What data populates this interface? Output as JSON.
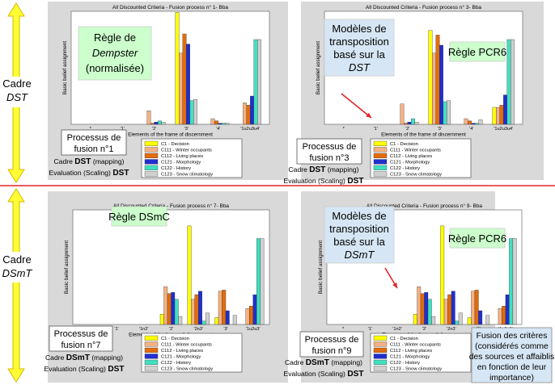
{
  "frames": [
    {
      "text": "Cadre",
      "italic_text": "DST"
    },
    {
      "text": "Cadre",
      "italic_text": "DSmT"
    }
  ],
  "colors": {
    "divider": "#e0262a",
    "arrow": "#ffff33",
    "arrow_stroke": "#d9b800",
    "panel_bg": "#d9d9d9",
    "rule_box": "#ccffcc",
    "model_box": "#d6e6f4",
    "note_box": "#d6e6f4"
  },
  "legend": [
    {
      "label": "C1 - Decision",
      "color": "#ffff00"
    },
    {
      "label": "C111 - Winter occupants",
      "color": "#f4b183"
    },
    {
      "label": "C112 - Living places",
      "color": "#e46c0a"
    },
    {
      "label": "C121 - Morphology",
      "color": "#1f2fcf"
    },
    {
      "label": "C122 - History",
      "color": "#40e0c0"
    },
    {
      "label": "C123 - Snow climatology",
      "color": "#d0d0d0"
    }
  ],
  "chart_data": [
    {
      "type": "bar",
      "title": "All Discounted Criteria - Fusion process n° 1- Bba",
      "xlabel": "Elements of the frame of discernment",
      "ylabel": "Basic belief assignment",
      "ylim": [
        0,
        1
      ],
      "categories": [
        "*",
        "'1'",
        "'2'",
        "'3'",
        "'4'",
        "'1u2u3u4'"
      ],
      "series": [
        {
          "name": "C1 - Decision",
          "values": [
            0,
            0,
            0,
            0.99,
            0,
            0
          ]
        },
        {
          "name": "C111 - Winter occupants",
          "values": [
            0,
            0,
            0.12,
            0.63,
            0.05,
            0.19
          ]
        },
        {
          "name": "C112 - Living places",
          "values": [
            0,
            0,
            0.01,
            0.8,
            0.03,
            0.17
          ]
        },
        {
          "name": "C121 - Morphology",
          "values": [
            0,
            0,
            0.02,
            0.71,
            0.01,
            0.25
          ]
        },
        {
          "name": "C122 - History",
          "values": [
            0,
            0,
            0.03,
            0.21,
            0.01,
            0.75
          ]
        },
        {
          "name": "C123 - Snow climatology",
          "values": [
            0,
            0,
            0.02,
            0.22,
            0.01,
            0.75
          ]
        }
      ],
      "rule": {
        "line1": "Règle de",
        "line2_italic": "Dempster",
        "line3": "(normalisée)"
      },
      "process": {
        "line1": "Processus de",
        "line2": "fusion n°1",
        "cadre_pre": "Cadre ",
        "cadre_bold": "DST",
        "cadre_post": " (mapping)",
        "eval_pre": "Evaluation (Scaling) ",
        "eval_bold": "DST"
      }
    },
    {
      "type": "bar",
      "title": "All Discounted Criteria - Fusion process n° 3- Bba",
      "xlabel": "Elements of the frame of discernment",
      "ylabel": "Basic belief assignment",
      "ylim": [
        0,
        1
      ],
      "categories": [
        "*",
        "'1'",
        "'2'",
        "'3'",
        "'4'",
        "'1u2u3u4'"
      ],
      "series": [
        {
          "name": "C1 - Decision",
          "values": [
            0,
            0,
            0,
            0.83,
            0,
            0.15
          ]
        },
        {
          "name": "C111 - Winter occupants",
          "values": [
            0,
            0,
            0.18,
            0.63,
            0.05,
            0.15
          ]
        },
        {
          "name": "C112 - Living places",
          "values": [
            0,
            0,
            0.01,
            0.79,
            0.03,
            0.17
          ]
        },
        {
          "name": "C121 - Morphology",
          "values": [
            0,
            0,
            0.02,
            0.7,
            0.01,
            0.26
          ]
        },
        {
          "name": "C122 - History",
          "values": [
            0,
            0,
            0.05,
            0.2,
            0.01,
            0.75
          ]
        },
        {
          "name": "C123 - Snow climatology",
          "values": [
            0,
            0,
            0.02,
            0.21,
            0.04,
            0.75
          ]
        }
      ],
      "rule": {
        "line1": "Règle PCR6"
      },
      "model": {
        "line1": "Modèles de",
        "line2": "transposition",
        "line3": "basé sur la",
        "line4_italic": "DST"
      },
      "process": {
        "line1": "Processus de",
        "line2": "fusion n°3",
        "cadre_pre": "Cadre ",
        "cadre_bold": "DST",
        "cadre_post": " (mapping)",
        "eval_pre": "Evaluation (Scaling) ",
        "eval_bold": "DST"
      }
    },
    {
      "type": "bar",
      "title": "All Discounted Criteria - Fusion process n° 7- Bba",
      "xlabel": "Elements of the frame of discernment",
      "ylabel": "Basic belief assignment",
      "ylim": [
        0,
        1
      ],
      "categories": [
        "*",
        "'1'",
        "'1n2'",
        "'2'",
        "'2n3'",
        "'3'",
        "'1u2u3'"
      ],
      "series": [
        {
          "name": "C1 - Decision",
          "values": [
            0,
            0,
            0,
            0.09,
            0.86,
            0.06,
            0
          ]
        },
        {
          "name": "C111 - Winter occupants",
          "values": [
            0,
            0,
            0,
            0.33,
            0.22,
            0.29,
            0.14
          ]
        },
        {
          "name": "C112 - Living places",
          "values": [
            0,
            0,
            0,
            0.27,
            0.26,
            0.3,
            0.16
          ]
        },
        {
          "name": "C121 - Morphology",
          "values": [
            0,
            0,
            0,
            0.28,
            0.29,
            0.12,
            0.26
          ]
        },
        {
          "name": "C122 - History",
          "values": [
            0,
            0,
            0,
            0.22,
            0.03,
            0,
            0.75
          ]
        },
        {
          "name": "C123 - Snow climatology",
          "values": [
            0,
            0,
            0,
            0.07,
            0.1,
            0.08,
            0.75
          ]
        }
      ],
      "rule": {
        "line1": "Règle DSmC"
      },
      "process": {
        "line1": "Processus de",
        "line2": "fusion n°7",
        "cadre_pre": "Cadre ",
        "cadre_bold": "DSmT",
        "cadre_post": " (mapping)",
        "eval_pre": "Evaluation (Scaling) ",
        "eval_bold": "DST"
      }
    },
    {
      "type": "bar",
      "title": "All Discounted Criteria - Fusion process n° 9- Bba",
      "xlabel": "Elements of the frame of discernment",
      "ylabel": "Basic belief assignment",
      "ylim": [
        0,
        1
      ],
      "categories": [
        "*",
        "'1'",
        "'1n2'",
        "'2'",
        "'2n3'",
        "'3'",
        "'1u2u3'"
      ],
      "series": [
        {
          "name": "C1 - Decision",
          "values": [
            0,
            0,
            0,
            0.09,
            0.86,
            0.06,
            0
          ]
        },
        {
          "name": "C111 - Winter occupants",
          "values": [
            0,
            0,
            0,
            0.33,
            0.22,
            0.29,
            0.14
          ]
        },
        {
          "name": "C112 - Living places",
          "values": [
            0,
            0,
            0,
            0.27,
            0.26,
            0.3,
            0.16
          ]
        },
        {
          "name": "C121 - Morphology",
          "values": [
            0,
            0,
            0,
            0.28,
            0.29,
            0.12,
            0.26
          ]
        },
        {
          "name": "C122 - History",
          "values": [
            0,
            0,
            0,
            0.22,
            0.03,
            0,
            0.75
          ]
        },
        {
          "name": "C123 - Snow climatology",
          "values": [
            0,
            0,
            0,
            0.07,
            0.1,
            0.08,
            0.75
          ]
        }
      ],
      "rule": {
        "line1": "Règle PCR6"
      },
      "model": {
        "line1": "Modèles de",
        "line2": "transposition",
        "line3": "basé sur la",
        "line4_italic": "DSmT"
      },
      "process": {
        "line1": "Processus de",
        "line2": "fusion n°9",
        "cadre_pre": "Cadre ",
        "cadre_bold": "DSmT",
        "cadre_post": " (mapping)",
        "eval_pre": "Evaluation (Scaling) ",
        "eval_bold": "DST"
      }
    }
  ],
  "note": {
    "lines": [
      "Fusion des critères",
      "(considérés comme",
      "des sources et affaiblis",
      "en fonction de leur",
      "importance)"
    ]
  }
}
